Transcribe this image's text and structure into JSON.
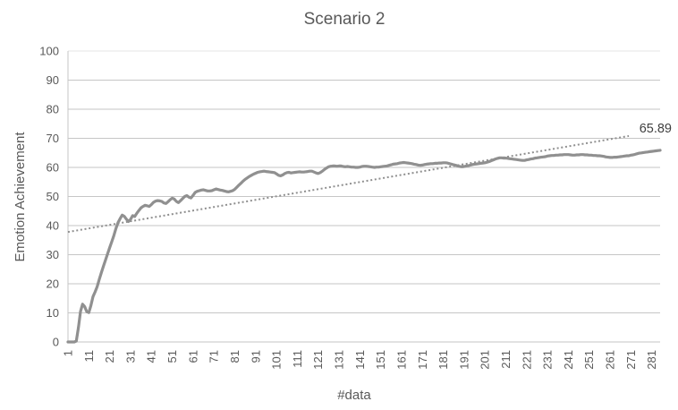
{
  "chart_data": {
    "type": "line",
    "title": "Scenario 2",
    "xlabel": "#data",
    "ylabel": "Emotion Achievement",
    "xlim": [
      1,
      285
    ],
    "ylim": [
      0,
      100
    ],
    "x_ticks": [
      1,
      11,
      21,
      31,
      41,
      51,
      61,
      71,
      81,
      91,
      101,
      111,
      121,
      131,
      141,
      151,
      161,
      171,
      181,
      191,
      201,
      211,
      221,
      231,
      241,
      251,
      261,
      271,
      281
    ],
    "y_ticks": [
      0,
      10,
      20,
      30,
      40,
      50,
      60,
      70,
      80,
      90,
      100
    ],
    "grid": "horizontal-major",
    "legend": "none",
    "end_label": {
      "text": "65.89",
      "value": 65.89,
      "at_x": 285
    },
    "series": {
      "name": "Emotion Achievement",
      "x_start": 1,
      "x_step": 1,
      "values": [
        0,
        0,
        0,
        0,
        0.3,
        5,
        10.5,
        13,
        12.2,
        10.4,
        10.1,
        12.5,
        15.6,
        17.2,
        19,
        21.5,
        23.8,
        26,
        28.2,
        30.3,
        32.4,
        34.5,
        36.6,
        39,
        41,
        42.4,
        43.6,
        43.2,
        42.2,
        41.4,
        42.1,
        43.4,
        43.1,
        44.2,
        45.2,
        46.1,
        46.6,
        47,
        46.8,
        46.6,
        47.2,
        48,
        48.4,
        48.6,
        48.5,
        48.3,
        47.8,
        47.6,
        48.2,
        48.9,
        49.4,
        49.1,
        48.3,
        47.9,
        48.6,
        49.3,
        50,
        50.3,
        49.8,
        49.5,
        50.4,
        51.4,
        51.8,
        52,
        52.2,
        52.3,
        52.1,
        51.9,
        51.9,
        52,
        52.3,
        52.6,
        52.4,
        52.2,
        52.1,
        51.9,
        51.7,
        51.6,
        51.8,
        52,
        52.5,
        53.2,
        53.9,
        54.6,
        55.3,
        55.9,
        56.4,
        56.9,
        57.3,
        57.7,
        58,
        58.3,
        58.5,
        58.6,
        58.7,
        58.6,
        58.5,
        58.4,
        58.3,
        58.2,
        57.8,
        57.3,
        57.1,
        57.4,
        57.9,
        58.2,
        58.3,
        58.1,
        58.2,
        58.3,
        58.4,
        58.5,
        58.4,
        58.4,
        58.5,
        58.6,
        58.7,
        58.7,
        58.4,
        58.1,
        57.9,
        58.2,
        58.7,
        59.3,
        59.8,
        60.2,
        60.4,
        60.5,
        60.5,
        60.4,
        60.5,
        60.5,
        60.3,
        60.2,
        60.3,
        60.2,
        60.1,
        60.1,
        60,
        60,
        60.1,
        60.3,
        60.4,
        60.4,
        60.3,
        60.2,
        60.1,
        60,
        60.1,
        60.1,
        60.2,
        60.3,
        60.4,
        60.5,
        60.7,
        60.9,
        61.1,
        61.2,
        61.3,
        61.5,
        61.6,
        61.7,
        61.6,
        61.5,
        61.4,
        61.3,
        61.1,
        61,
        60.8,
        60.7,
        60.8,
        61,
        61.1,
        61.2,
        61.3,
        61.3,
        61.4,
        61.4,
        61.5,
        61.5,
        61.6,
        61.6,
        61.5,
        61.3,
        61.1,
        60.9,
        60.7,
        60.5,
        60.3,
        60.2,
        60.3,
        60.5,
        60.6,
        60.8,
        61,
        61.1,
        61.2,
        61.3,
        61.4,
        61.5,
        61.6,
        61.8,
        62,
        62.3,
        62.6,
        62.9,
        63.1,
        63.3,
        63.3,
        63.2,
        63.2,
        63.1,
        63,
        62.9,
        62.8,
        62.7,
        62.6,
        62.5,
        62.4,
        62.4,
        62.6,
        62.7,
        62.9,
        63,
        63.2,
        63.3,
        63.4,
        63.5,
        63.6,
        63.7,
        63.9,
        64,
        64.1,
        64.1,
        64.2,
        64.2,
        64.3,
        64.3,
        64.4,
        64.4,
        64.4,
        64.3,
        64.2,
        64.2,
        64.3,
        64.3,
        64.4,
        64.4,
        64.3,
        64.3,
        64.2,
        64.2,
        64.1,
        64.1,
        64,
        64,
        63.9,
        63.8,
        63.6,
        63.5,
        63.4,
        63.4,
        63.5,
        63.5,
        63.6,
        63.7,
        63.8,
        63.9,
        64,
        64,
        64.2,
        64.3,
        64.5,
        64.7,
        64.9,
        65,
        65.1,
        65.2,
        65.3,
        65.4,
        65.5,
        65.6,
        65.7,
        65.8,
        65.89
      ]
    },
    "trendline": {
      "type": "linear-dotted",
      "x1": 1,
      "y1": 37.8,
      "x2": 270,
      "y2": 70.8
    },
    "colors": {
      "line": "#909090",
      "trend": "#8f8f8f",
      "grid": "#c6c6c6",
      "grid_top": "#e4e4e4",
      "axis": "#c6c6c6",
      "text": "#595959",
      "label_text": "#3f3f3f"
    }
  }
}
